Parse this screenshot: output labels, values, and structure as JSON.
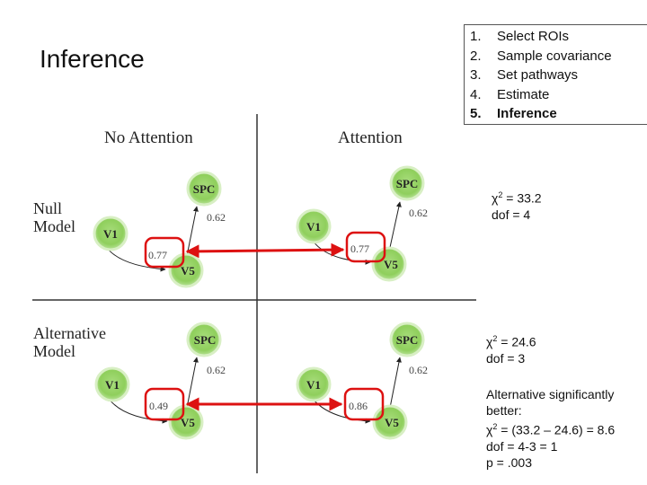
{
  "slide_title": "Inference",
  "steps": [
    {
      "num": "1.",
      "label": "Select ROIs"
    },
    {
      "num": "2.",
      "label": "Sample covariance"
    },
    {
      "num": "3.",
      "label": "Set pathways"
    },
    {
      "num": "4.",
      "label": "Estimate"
    },
    {
      "num": "5.",
      "label": "Inference"
    }
  ],
  "columns": {
    "left": "No Attention",
    "right": "Attention"
  },
  "rows": {
    "null_1": "Null",
    "null_2": "Model",
    "alt_1": "Alternative",
    "alt_2": "Model"
  },
  "nodes": {
    "spc": "SPC",
    "v1": "V1",
    "v5": "V5"
  },
  "path_values": {
    "null_left_v5_spc": "0.62",
    "null_left_v1_v5": "0.77",
    "null_right_v5_spc": "0.62",
    "null_right_v1_v5": "0.77",
    "alt_left_v5_spc": "0.62",
    "alt_left_v1_v5": "0.49",
    "alt_right_v5_spc": "0.62",
    "alt_right_v1_v5": "0.86"
  },
  "null_stats": {
    "chi": "χ",
    "sup": "2",
    "value": " = 33.2",
    "dof": "dof = 4"
  },
  "alt_stats": {
    "chi": "χ",
    "sup": "2",
    "value": " = 24.6",
    "dof": "dof = 3"
  },
  "comparison": {
    "line1": "Alternative significantly",
    "line2": "better:",
    "chi": "χ",
    "sup": "2",
    "value": " = (33.2 – 24.6) = 8.6",
    "dof": "dof = 4-3 = 1",
    "p": "p = .003"
  },
  "colors": {
    "node_fill": "#8fcf5c",
    "node_glow": "#d8efc4",
    "highlight": "#dd1111"
  }
}
